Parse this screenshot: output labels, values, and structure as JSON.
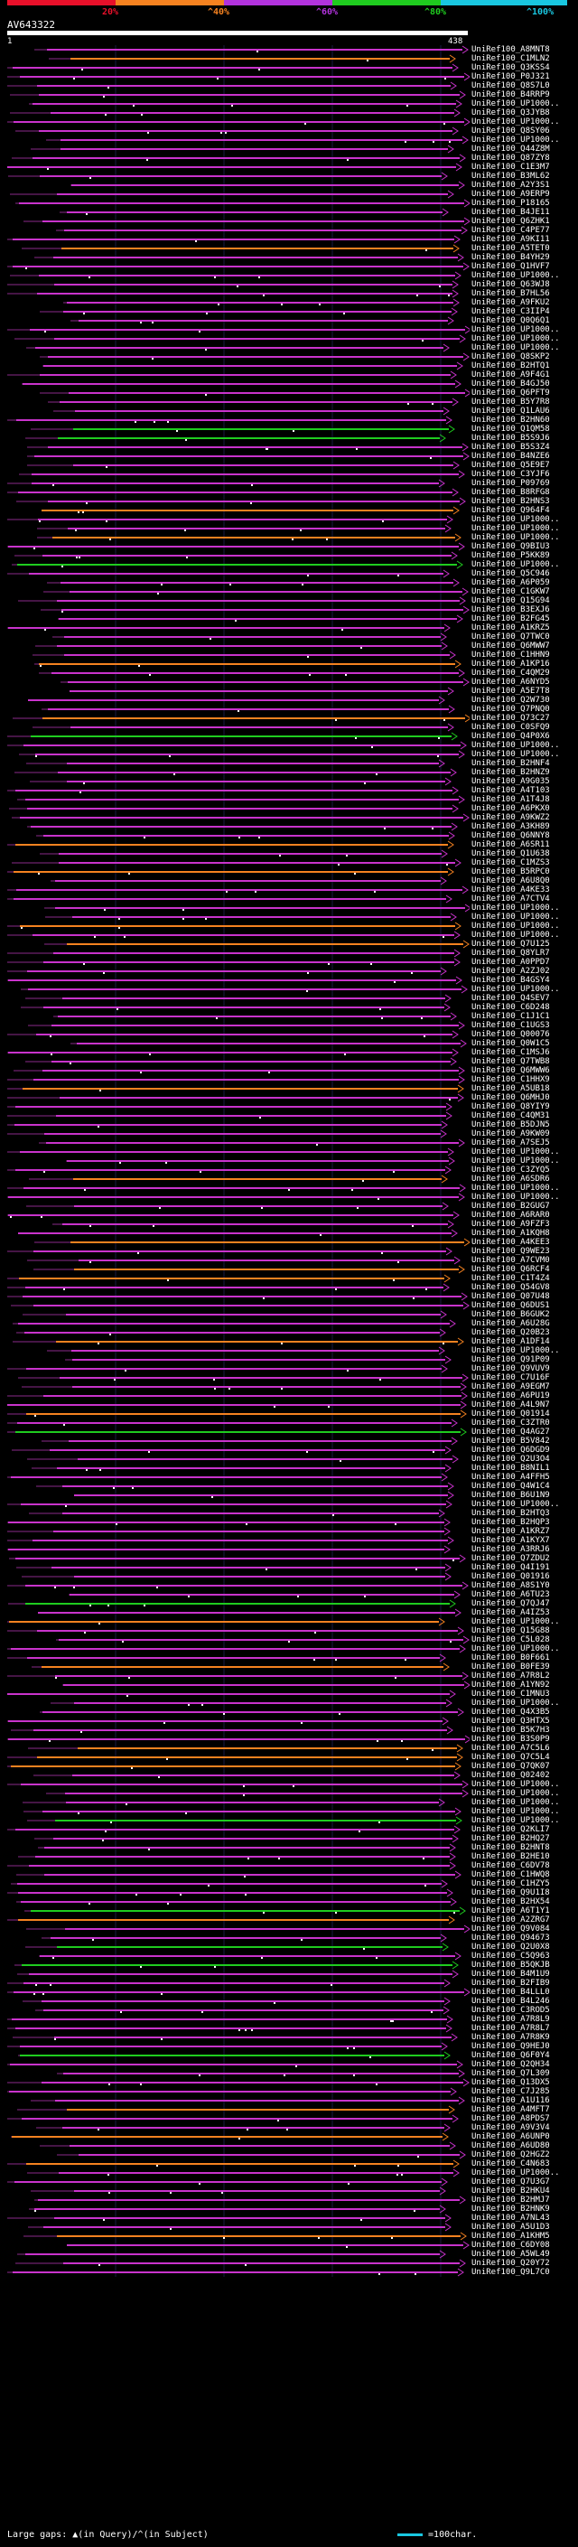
{
  "legend": {
    "percent_labels": [
      "20%",
      "^40%",
      "^60%",
      "^80%",
      "^100%"
    ],
    "colors": [
      "#e8102a",
      "#f58220",
      "#b233dd",
      "#1fcc1f",
      "#19c7e0"
    ]
  },
  "query": {
    "name": "AV643322",
    "start": "1",
    "end": "438"
  },
  "hits": [
    "UniRef100_A8MNT8",
    "UniRef100_C1MLN2",
    "UniRef100_Q3KSS4",
    "UniRef100_P0J321",
    "UniRef100_Q8S7L0",
    "UniRef100_B4RRP9",
    "UniRef100_UP1000..",
    "UniRef100_Q3JYB8",
    "UniRef100_UP1000..",
    "UniRef100_Q8SY06",
    "UniRef100_UP1000..",
    "UniRef100_Q44Z8M",
    "UniRef100_Q87ZY8",
    "UniRef100_C1E3M7",
    "UniRef100_B3ML62",
    "UniRef100_A2Y3S1",
    "UniRef100_A9ERP9",
    "UniRef100_P18165",
    "UniRef100_B4JE11",
    "UniRef100_Q6ZHK1",
    "UniRef100_C4PE77",
    "UniRef100_A9KI11",
    "UniRef100_A5TET0",
    "UniRef100_B4YH29",
    "UniRef100_Q1HVF7",
    "UniRef100_UP1000..",
    "UniRef100_Q63WJ8",
    "UniRef100_B7HL56",
    "UniRef100_A9FKU2",
    "UniRef100_C3IIP4",
    "UniRef100_Q0Q6Q1",
    "UniRef100_UP1000..",
    "UniRef100_UP1000..",
    "UniRef100_UP1000..",
    "UniRef100_Q8SKP2",
    "UniRef100_B2HTQ1",
    "UniRef100_A9F4G1",
    "UniRef100_B4GJ50",
    "UniRef100_Q6PFT9",
    "UniRef100_B5Y7R8",
    "UniRef100_Q1LAU6",
    "UniRef100_B2HN60",
    "UniRef100_Q1QM58",
    "UniRef100_B5S9J6",
    "UniRef100_B5S3Z4",
    "UniRef100_B4NZE6",
    "UniRef100_Q5E9E7",
    "UniRef100_C3YJF6",
    "UniRef100_P09769",
    "UniRef100_B8RFG8",
    "UniRef100_B2HNS3",
    "UniRef100_Q964F4",
    "UniRef100_UP1000..",
    "UniRef100_UP1000..",
    "UniRef100_UP1000..",
    "UniRef100_Q9BIU3",
    "UniRef100_P5KK89",
    "UniRef100_UP1000..",
    "UniRef100_Q5C946",
    "UniRef100_A6P059",
    "UniRef100_C1GKW7",
    "UniRef100_Q15G94",
    "UniRef100_B3EXJ6",
    "UniRef100_B2FG45",
    "UniRef100_A1KRZ5",
    "UniRef100_Q7TWC0",
    "UniRef100_Q6MWW7",
    "UniRef100_C1HHN9",
    "UniRef100_A1KP16",
    "UniRef100_C4QM29",
    "UniRef100_A6NYD5",
    "UniRef100_A5E7T8",
    "UniRef100_Q2W730",
    "UniRef100_Q7PNQ0",
    "UniRef100_Q73C27",
    "UniRef100_C0SFQ9",
    "UniRef100_Q4P0X6",
    "UniRef100_UP1000..",
    "UniRef100_UP1000..",
    "UniRef100_B2HNF4",
    "UniRef100_B2HNZ9",
    "UniRef100_A9G035",
    "UniRef100_A4T103",
    "UniRef100_A1T4J8",
    "UniRef100_A6PKX0",
    "UniRef100_A9KWZ2",
    "UniRef100_A3KH89",
    "UniRef100_Q6NNY8",
    "UniRef100_A6SR11",
    "UniRef100_Q1U638",
    "UniRef100_C1MZS3",
    "UniRef100_B5RPC0",
    "UniRef100_A6U8Q0",
    "UniRef100_A4KE33",
    "UniRef100_A7CTV4",
    "UniRef100_UP1000..",
    "UniRef100_UP1000..",
    "UniRef100_UP1000..",
    "UniRef100_UP1000..",
    "UniRef100_Q7U125",
    "UniRef100_Q8YLR7",
    "UniRef100_A0PPD7",
    "UniRef100_A2ZJ02",
    "UniRef100_B4GSY4",
    "UniRef100_UP1000..",
    "UniRef100_Q4SEV7",
    "UniRef100_C6D248",
    "UniRef100_C1J1C1",
    "UniRef100_C1UGS3",
    "UniRef100_Q00076",
    "UniRef100_Q0W1C5",
    "UniRef100_C1MSJ6",
    "UniRef100_Q7TWB8",
    "UniRef100_Q6MWW6",
    "UniRef100_C1HHX9",
    "UniRef100_A5UB18",
    "UniRef100_Q6MHJ0",
    "UniRef100_Q8YIY9",
    "UniRef100_C4QM31",
    "UniRef100_B5DJN5",
    "UniRef100_A9KW09",
    "UniRef100_A7SEJ5",
    "UniRef100_UP1000..",
    "UniRef100_UP1000..",
    "UniRef100_C3ZYQ5",
    "UniRef100_A6SDR6",
    "UniRef100_UP1000..",
    "UniRef100_UP1000..",
    "UniRef100_B2GUG7",
    "UniRef100_A6RAR0",
    "UniRef100_A9FZF3",
    "UniRef100_A1KQH8",
    "UniRef100_A4KEE3",
    "UniRef100_Q9WE23",
    "UniRef100_A7CVM0",
    "UniRef100_Q6RCF4",
    "UniRef100_C1T4Z4",
    "UniRef100_Q54GV8",
    "UniRef100_Q07U48",
    "UniRef100_Q6DUS1",
    "UniRef100_B6GUK2",
    "UniRef100_A6U28G",
    "UniRef100_Q20B23",
    "UniRef100_A1DF14",
    "UniRef100_UP1000..",
    "UniRef100_Q91P09",
    "UniRef100_Q9VUV9",
    "UniRef100_C7U16F",
    "UniRef100_A9EGM7",
    "UniRef100_A6PU19",
    "UniRef100_A4L9N7",
    "UniRef100_Q01914",
    "UniRef100_C3ZTR0",
    "UniRef100_Q4AG27",
    "UniRef100_B5V842",
    "UniRef100_Q6DGD9",
    "UniRef100_Q2U3O4",
    "UniRef100_B8NIL1",
    "UniRef100_A4FFH5",
    "UniRef100_Q4W1C4",
    "UniRef100_B6U1N9",
    "UniRef100_UP1000..",
    "UniRef100_B2HTQ3",
    "UniRef100_B2HQP3",
    "UniRef100_A1KRZ7",
    "UniRef100_A1KYX7",
    "UniRef100_A3RRJ6",
    "UniRef100_Q7ZDU2",
    "UniRef100_Q4I191",
    "UniRef100_Q01916",
    "UniRef100_A8S1Y0",
    "UniRef100_A6TU23",
    "UniRef100_Q7QJ47",
    "UniRef100_A4IZ53",
    "UniRef100_UP1000..",
    "UniRef100_Q15G88",
    "UniRef100_C5L028",
    "UniRef100_UP1000..",
    "UniRef100_B0F661",
    "UniRef100_B0FE39",
    "UniRef100_A7R8L2",
    "UniRef100_A1YN92",
    "UniRef100_C1MNU3",
    "UniRef100_UP1000..",
    "UniRef100_Q4X3B5",
    "UniRef100_Q3HTX5",
    "UniRef100_B5K7H3",
    "UniRef100_B3S0P9",
    "UniRef100_A7C5L6",
    "UniRef100_Q7C5L4",
    "UniRef100_Q7QK07",
    "UniRef100_Q02402",
    "UniRef100_UP1000..",
    "UniRef100_UP1000..",
    "UniRef100_UP1000..",
    "UniRef100_UP1000..",
    "UniRef100_UP1000..",
    "UniRef100_Q2KLI7",
    "UniRef100_B2HQ27",
    "UniRef100_B2HNT8",
    "UniRef100_B2HE10",
    "UniRef100_C6DV78",
    "UniRef100_C1HWQ8",
    "UniRef100_C1HZY5",
    "UniRef100_Q9U1I8",
    "UniRef100_B2HX54",
    "UniRef100_A6T1Y1",
    "UniRef100_A2ZRG7",
    "UniRef100_Q9V084",
    "UniRef100_Q94673",
    "UniRef100_Q2U0X8",
    "UniRef100_C5Q963",
    "UniRef100_B5QKJB",
    "UniRef100_B4M1U9",
    "UniRef100_B2FIB9",
    "UniRef100_B4LLL0",
    "UniRef100_B4L246",
    "UniRef100_C3ROD5",
    "UniRef100_A7R8L9",
    "UniRef100_A7R8L7",
    "UniRef100_A7R8K9",
    "UniRef100_Q9HEJ0",
    "UniRef100_Q6F0Y4",
    "UniRef100_Q2QH34",
    "UniRef100_Q7L309",
    "UniRef100_Q13DX5",
    "UniRef100_C7J285",
    "UniRef100_A1U116",
    "UniRef100_A4MFT7",
    "UniRef100_A8PDS7",
    "UniRef100_A9V3V4",
    "UniRef100_A6UNP0",
    "UniRef100_A6UD80",
    "UniRef100_Q2HGZ2",
    "UniRef100_C4N683",
    "UniRef100_UP1000..",
    "UniRef100_Q7U3G7",
    "UniRef100_B2HKU4",
    "UniRef100_B2HMJ7",
    "UniRef100_B2HNK9",
    "UniRef100_A7NL43",
    "UniRef100_A5U1D3",
    "UniRef100_A1KHM5",
    "UniRef100_C6DY08",
    "UniRef100_A5WL49",
    "UniRef100_Q20Y72",
    "UniRef100_Q9L7C0"
  ],
  "footer": {
    "large_gaps_label": "Large gaps:",
    "in_query": "(in Query)/",
    "in_subject": "(in Subject)",
    "scale_label": "=100char."
  }
}
